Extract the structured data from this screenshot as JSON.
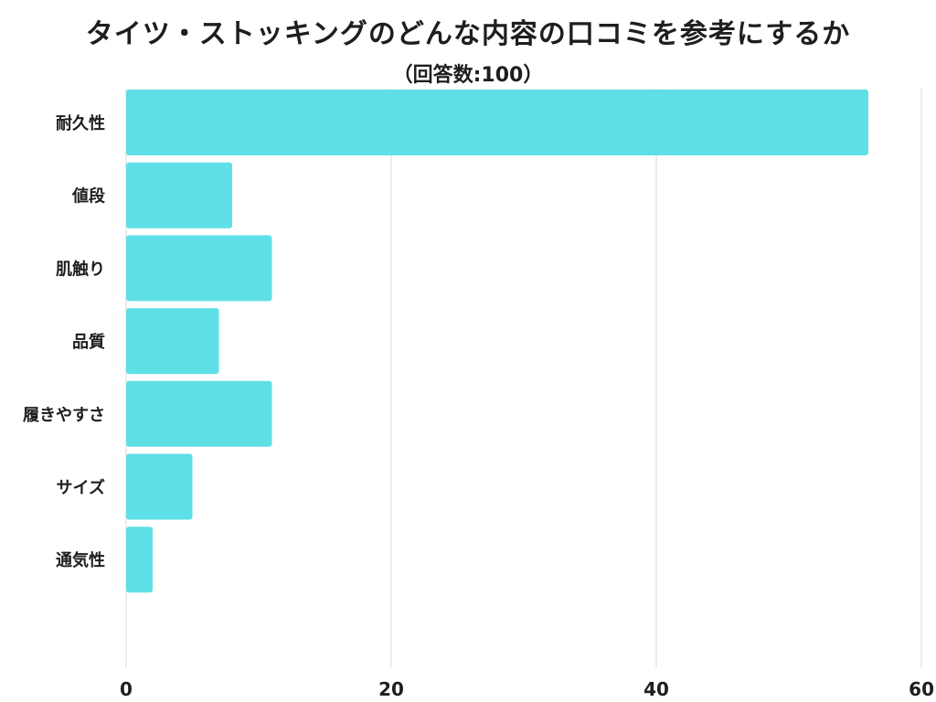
{
  "chart_data": {
    "type": "bar",
    "orientation": "horizontal",
    "title": "タイツ・ストッキングのどんな内容の口コミを参考にするか",
    "subtitle": "（回答数:100）",
    "categories": [
      "耐久性",
      "値段",
      "肌触り",
      "品質",
      "履きやすさ",
      "サイズ",
      "通気性"
    ],
    "values": [
      56,
      8,
      11,
      7,
      11,
      5,
      2
    ],
    "xlim": [
      0,
      60
    ],
    "xticks": [
      0,
      20,
      40,
      60
    ],
    "xlabel": "",
    "ylabel": "",
    "grid": "vertical",
    "legend": "none",
    "colors": {
      "bar": "#5ee0e6",
      "grid": "#d9d9d9",
      "text": "#1e1e1e"
    }
  }
}
